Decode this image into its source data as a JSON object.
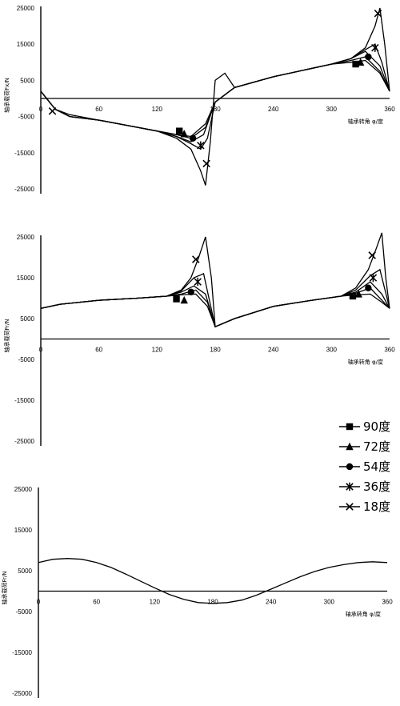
{
  "chart_data": [
    {
      "type": "line",
      "ylabel": "轴承载荷Fx/N",
      "xlabel": "轴承转角 φ/度",
      "x_ticks": [
        0,
        60,
        120,
        180,
        240,
        300,
        360
      ],
      "y_ticks": [
        25000,
        15000,
        5000,
        -5000,
        -15000,
        -25000
      ],
      "ylim": [
        -25000,
        25000
      ],
      "xlim": [
        0,
        360
      ],
      "series": [
        {
          "name": "90度",
          "marker": "square",
          "x": [
            0,
            15,
            30,
            60,
            90,
            120,
            140,
            155,
            170,
            180,
            200,
            240,
            300,
            320,
            335,
            350,
            360
          ],
          "y": [
            2000,
            -3000,
            -5000,
            -6000,
            -7500,
            -9000,
            -10000,
            -10500,
            -7000,
            -1000,
            3000,
            6000,
            9500,
            10000,
            10500,
            7000,
            2000
          ],
          "marker_points": [
            [
              143,
              -9000
            ],
            [
              325,
              9500
            ]
          ]
        },
        {
          "name": "72度",
          "marker": "triangle",
          "x": [
            0,
            15,
            30,
            60,
            90,
            120,
            140,
            155,
            170,
            180,
            200,
            240,
            300,
            320,
            335,
            350,
            360
          ],
          "y": [
            2000,
            -3000,
            -5000,
            -6000,
            -7500,
            -9000,
            -10000,
            -11000,
            -8000,
            -1000,
            3000,
            6000,
            9500,
            10500,
            11500,
            7500,
            2000
          ],
          "marker_points": [
            [
              148,
              -9800
            ],
            [
              330,
              10000
            ]
          ]
        },
        {
          "name": "54度",
          "marker": "circle",
          "x": [
            0,
            15,
            30,
            60,
            90,
            120,
            140,
            155,
            168,
            180,
            200,
            240,
            300,
            320,
            335,
            350,
            360
          ],
          "y": [
            2000,
            -3000,
            -5000,
            -6000,
            -7500,
            -9000,
            -10500,
            -12000,
            -10000,
            -1000,
            3000,
            6000,
            9500,
            11000,
            13000,
            9000,
            2000
          ],
          "marker_points": [
            [
              157,
              -11000
            ],
            [
              338,
              11500
            ]
          ]
        },
        {
          "name": "36度",
          "marker": "star",
          "x": [
            0,
            15,
            30,
            60,
            90,
            120,
            140,
            155,
            165,
            172,
            180,
            200,
            240,
            300,
            320,
            335,
            345,
            352,
            360
          ],
          "y": [
            2000,
            -3000,
            -5000,
            -6000,
            -7500,
            -9000,
            -10500,
            -12500,
            -14000,
            -11000,
            -1000,
            3000,
            6000,
            9500,
            11000,
            13500,
            15000,
            10000,
            2000
          ],
          "marker_points": [
            [
              165,
              -13000
            ],
            [
              345,
              14000
            ]
          ]
        },
        {
          "name": "18度",
          "marker": "x",
          "x": [
            0,
            15,
            30,
            60,
            90,
            120,
            140,
            155,
            165,
            170,
            175,
            180,
            190,
            200,
            240,
            300,
            320,
            335,
            345,
            350,
            355,
            360
          ],
          "y": [
            2000,
            -3000,
            -4500,
            -6000,
            -7500,
            -9000,
            -11000,
            -14000,
            -20000,
            -24000,
            -12000,
            5000,
            7000,
            3000,
            6000,
            9500,
            11000,
            14000,
            20000,
            25000,
            15000,
            2000
          ],
          "marker_points": [
            [
              12,
              -3500
            ],
            [
              171,
              -18000
            ],
            [
              348,
              23500
            ]
          ]
        }
      ]
    },
    {
      "type": "line",
      "ylabel": "轴承载荷Fr/N",
      "xlabel": "轴承转角 φ/度",
      "x_ticks": [
        0,
        60,
        120,
        180,
        240,
        300,
        360
      ],
      "y_ticks": [
        25000,
        15000,
        5000,
        -5000,
        -15000,
        -25000
      ],
      "ylim": [
        -25000,
        25000
      ],
      "xlim": [
        0,
        360
      ],
      "series": [
        {
          "name": "90度",
          "marker": "square",
          "x": [
            0,
            20,
            60,
            100,
            130,
            145,
            160,
            172,
            180,
            200,
            240,
            280,
            310,
            325,
            340,
            352,
            360
          ],
          "y": [
            7500,
            8500,
            9500,
            10000,
            10500,
            10800,
            11000,
            8000,
            3000,
            5000,
            8000,
            9500,
            10500,
            10800,
            11000,
            9000,
            7500
          ],
          "marker_points": [
            [
              140,
              9800
            ],
            [
              322,
              10500
            ]
          ]
        },
        {
          "name": "72度",
          "marker": "triangle",
          "x": [
            0,
            20,
            60,
            100,
            130,
            145,
            160,
            172,
            180,
            200,
            240,
            280,
            310,
            325,
            340,
            352,
            360
          ],
          "y": [
            7500,
            8500,
            9500,
            10000,
            10500,
            11000,
            12000,
            9000,
            3000,
            5000,
            8000,
            9500,
            10500,
            11200,
            12500,
            9500,
            7500
          ],
          "marker_points": [
            [
              148,
              9500
            ],
            [
              328,
              11000
            ]
          ]
        },
        {
          "name": "54度",
          "marker": "circle",
          "x": [
            0,
            20,
            60,
            100,
            130,
            145,
            158,
            170,
            180,
            200,
            240,
            280,
            310,
            325,
            340,
            352,
            360
          ],
          "y": [
            7500,
            8500,
            9500,
            10000,
            10500,
            11500,
            13000,
            11000,
            3000,
            5000,
            8000,
            9500,
            10500,
            11500,
            14000,
            11000,
            7500
          ],
          "marker_points": [
            [
              155,
              11500
            ],
            [
              338,
              12500
            ]
          ]
        },
        {
          "name": "36度",
          "marker": "star",
          "x": [
            0,
            20,
            60,
            100,
            130,
            145,
            158,
            168,
            180,
            200,
            240,
            280,
            310,
            325,
            340,
            350,
            360
          ],
          "y": [
            7500,
            8500,
            9500,
            10000,
            10500,
            11800,
            15000,
            16000,
            3000,
            5000,
            8000,
            9500,
            10500,
            12000,
            15500,
            17000,
            7500
          ],
          "marker_points": [
            [
              162,
              14000
            ],
            [
              343,
              15000
            ]
          ]
        },
        {
          "name": "18度",
          "marker": "x",
          "x": [
            0,
            20,
            60,
            100,
            130,
            145,
            155,
            163,
            170,
            176,
            180,
            200,
            240,
            280,
            310,
            325,
            338,
            346,
            352,
            356,
            360
          ],
          "y": [
            7500,
            8500,
            9500,
            10000,
            10500,
            12000,
            15000,
            20000,
            25000,
            15000,
            3000,
            5000,
            8000,
            9500,
            10500,
            12500,
            17000,
            22000,
            26000,
            15000,
            7500
          ],
          "marker_points": [
            [
              160,
              19500
            ],
            [
              342,
              20500
            ]
          ]
        }
      ]
    },
    {
      "type": "line",
      "ylabel": "轴承载荷Fr/N",
      "xlabel": "轴承转角 φ/度",
      "x_ticks": [
        0,
        60,
        120,
        180,
        240,
        300,
        360
      ],
      "y_ticks": [
        25000,
        15000,
        5000,
        -5000,
        -15000,
        -25000
      ],
      "ylim": [
        -25000,
        25000
      ],
      "xlim": [
        0,
        360
      ],
      "series": [
        {
          "name": "",
          "x": [
            0,
            15,
            30,
            45,
            60,
            75,
            90,
            105,
            120,
            135,
            150,
            165,
            180,
            195,
            210,
            225,
            240,
            255,
            270,
            285,
            300,
            315,
            330,
            345,
            360
          ],
          "y": [
            7000,
            7800,
            8000,
            7800,
            7000,
            5800,
            4200,
            2500,
            800,
            -800,
            -2000,
            -2800,
            -3000,
            -2800,
            -2200,
            -1000,
            500,
            2000,
            3500,
            4800,
            5800,
            6500,
            7000,
            7200,
            7000
          ]
        }
      ]
    }
  ],
  "legend": [
    {
      "label": "90度",
      "marker": "square"
    },
    {
      "label": "72度",
      "marker": "triangle"
    },
    {
      "label": "54度",
      "marker": "circle"
    },
    {
      "label": "36度",
      "marker": "star"
    },
    {
      "label": "18度",
      "marker": "x"
    }
  ]
}
